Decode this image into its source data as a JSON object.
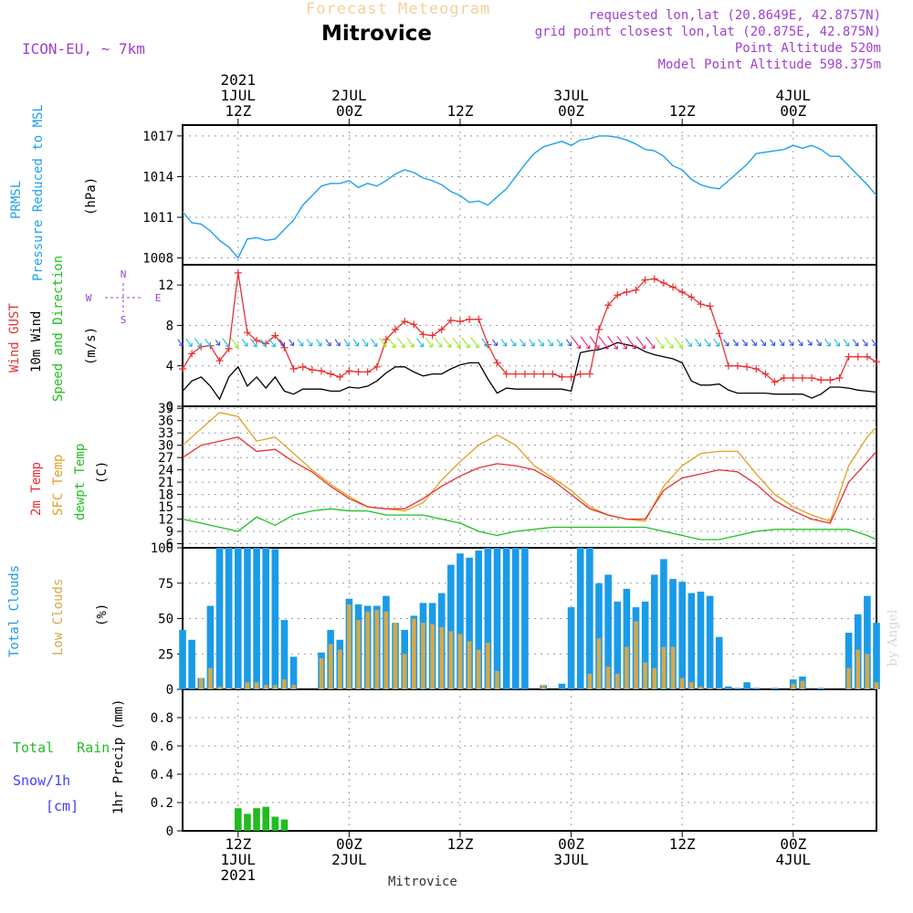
{
  "header": {
    "product": "Forecast Meteogram",
    "location": "Mitrovice",
    "model": "ICON-EU, ~ 7km",
    "requested": "requested lon,lat (20.8649E, 42.8757N)",
    "grid_point": "grid point closest lon,lat (20.875E, 42.875N)",
    "point_altitude": "Point Altitude 520m",
    "model_altitude": "Model Point Altitude 598.375m",
    "footer_location": "Mitrovice",
    "watermark": "by Angel"
  },
  "colors": {
    "pressure": "#1ea0f0",
    "gust": "#e83030",
    "wind": "#000000",
    "temp": "#e83030",
    "sfc_temp": "#e0a020",
    "dewpt": "#20c020",
    "total_clouds": "#1a9be8",
    "low_clouds": "#d4a84a",
    "rain": "#22bb22",
    "snow": "#4040ff",
    "label_purple": "#a040d0",
    "grid": "#999999"
  },
  "chart_data": {
    "time_axis": {
      "start_hour": 6,
      "end_hour": 81,
      "top_ticks": [
        {
          "hour": 12,
          "lines": [
            "2021",
            "1JUL",
            "12Z"
          ]
        },
        {
          "hour": 24,
          "lines": [
            "2JUL",
            "00Z"
          ]
        },
        {
          "hour": 36,
          "lines": [
            "12Z"
          ]
        },
        {
          "hour": 48,
          "lines": [
            "3JUL",
            "00Z"
          ]
        },
        {
          "hour": 60,
          "lines": [
            "12Z"
          ]
        },
        {
          "hour": 72,
          "lines": [
            "4JUL",
            "00Z"
          ]
        }
      ],
      "bottom_ticks": [
        {
          "hour": 12,
          "lines": [
            "12Z",
            "1JUL",
            "2021"
          ]
        },
        {
          "hour": 24,
          "lines": [
            "00Z",
            "2JUL"
          ]
        },
        {
          "hour": 36,
          "lines": [
            "12Z"
          ]
        },
        {
          "hour": 48,
          "lines": [
            "00Z",
            "3JUL"
          ]
        },
        {
          "hour": 60,
          "lines": [
            "12Z"
          ]
        },
        {
          "hour": 72,
          "lines": [
            "00Z",
            "4JUL"
          ]
        }
      ]
    },
    "pressure": {
      "type": "line",
      "labels": [
        "PRMSL",
        "Pressure Reduced to MSL"
      ],
      "unit": "(hPa)",
      "ylim": [
        1007.5,
        1017.8
      ],
      "yticks": [
        1008,
        1011,
        1014,
        1017
      ],
      "x": [
        6,
        7,
        8,
        9,
        10,
        11,
        12,
        13,
        14,
        15,
        16,
        17,
        18,
        19,
        20,
        21,
        22,
        23,
        24,
        25,
        26,
        27,
        28,
        29,
        30,
        31,
        32,
        33,
        34,
        35,
        36,
        37,
        38,
        39,
        40,
        41,
        42,
        43,
        44,
        45,
        46,
        47,
        48,
        49,
        50,
        51,
        52,
        53,
        54,
        55,
        56,
        57,
        58,
        59,
        60,
        61,
        62,
        63,
        64,
        65,
        66,
        67,
        68,
        69,
        70,
        71,
        72,
        73,
        74,
        75,
        76,
        77,
        78,
        79,
        80,
        81
      ],
      "values": [
        1011.4,
        1010.6,
        1010.5,
        1010,
        1009.3,
        1008.8,
        1008,
        1009.4,
        1009.5,
        1009.3,
        1009.4,
        1010.1,
        1010.8,
        1011.9,
        1012.6,
        1013.3,
        1013.5,
        1013.5,
        1013.7,
        1013.2,
        1013.5,
        1013.3,
        1013.7,
        1014.2,
        1014.5,
        1014.3,
        1013.9,
        1013.7,
        1013.4,
        1012.9,
        1012.6,
        1012.1,
        1012.2,
        1011.9,
        1012.5,
        1013.1,
        1014,
        1014.9,
        1015.7,
        1016.2,
        1016.4,
        1016.6,
        1016.3,
        1016.7,
        1016.8,
        1017,
        1017,
        1016.9,
        1016.7,
        1016.4,
        1016,
        1015.9,
        1015.5,
        1014.8,
        1014.5,
        1013.8,
        1013.4,
        1013.2,
        1013.1,
        1013.7,
        1014.3,
        1014.9,
        1015.7,
        1015.8,
        1015.9,
        1016,
        1016.3,
        1016.1,
        1016.3,
        1016,
        1015.5,
        1015.5,
        1014.8,
        1014.1,
        1013.4,
        1012.6
      ]
    },
    "wind": {
      "type": "line",
      "labels": [
        "Wind GUST",
        "10m Wind",
        "Speed and Direction"
      ],
      "unit": "(m/s)",
      "compass": [
        "N",
        "W",
        "E",
        "S"
      ],
      "ylim": [
        0,
        14
      ],
      "yticks": [
        0,
        4,
        8,
        12
      ],
      "x": [
        6,
        7,
        8,
        9,
        10,
        11,
        12,
        13,
        14,
        15,
        16,
        17,
        18,
        19,
        20,
        21,
        22,
        23,
        24,
        25,
        26,
        27,
        28,
        29,
        30,
        31,
        32,
        33,
        34,
        35,
        36,
        37,
        38,
        39,
        40,
        41,
        42,
        43,
        44,
        45,
        46,
        47,
        48,
        49,
        50,
        51,
        52,
        53,
        54,
        55,
        56,
        57,
        58,
        59,
        60,
        61,
        62,
        63,
        64,
        65,
        66,
        67,
        68,
        69,
        70,
        71,
        72,
        73,
        74,
        75,
        76,
        77,
        78,
        79,
        80,
        81
      ],
      "gust": [
        3.7,
        5.2,
        5.9,
        6,
        4.5,
        5.7,
        13.2,
        7.3,
        6.5,
        6.2,
        7,
        5.8,
        3.7,
        3.9,
        3.6,
        3.5,
        3.2,
        2.9,
        3.5,
        3.4,
        3.4,
        3.9,
        6.6,
        7.6,
        8.4,
        8.1,
        7.1,
        7,
        7.6,
        8.5,
        8.4,
        8.6,
        8.6,
        6.1,
        4.3,
        3.2,
        3.2,
        3.2,
        3.2,
        3.2,
        3.2,
        2.9,
        2.9,
        3.2,
        3.2,
        7.6,
        10,
        11,
        11.3,
        11.5,
        12.5,
        12.6,
        12.2,
        11.8,
        11.3,
        10.8,
        10.1,
        9.9,
        7.2,
        4,
        4,
        3.9,
        3.7,
        3.2,
        2.4,
        2.8,
        2.8,
        2.8,
        2.8,
        2.6,
        2.6,
        2.8,
        4.9,
        4.9,
        4.9,
        4.4
      ],
      "speed": [
        1.5,
        2.5,
        2.9,
        2,
        0.7,
        2.9,
        3.9,
        2,
        2.9,
        1.8,
        2.9,
        1.5,
        1.2,
        1.7,
        1.7,
        1.7,
        1.5,
        1.5,
        1.9,
        1.8,
        2,
        2.5,
        3.3,
        3.9,
        3.9,
        3.4,
        3,
        3.2,
        3.2,
        3.7,
        4.1,
        4.3,
        4.3,
        2.7,
        1.3,
        1.8,
        1.7,
        1.7,
        1.7,
        1.7,
        1.7,
        1.7,
        1.5,
        5.3,
        5.5,
        5.6,
        5.9,
        6.3,
        6.1,
        5.9,
        5.4,
        5.1,
        4.9,
        4.7,
        4.3,
        2.5,
        2.1,
        2.1,
        2.2,
        1.6,
        1.3,
        1.3,
        1.3,
        1.3,
        1.2,
        1.2,
        1.2,
        1.2,
        0.8,
        1.2,
        1.9,
        1.9,
        1.8,
        1.6,
        1.5,
        1.4
      ]
    },
    "temperature": {
      "type": "line",
      "labels": [
        "2m Temp",
        "SFC Temp",
        "dewpt Temp"
      ],
      "unit": "(C)",
      "ylim": [
        5,
        39.5
      ],
      "yticks": [
        6,
        9,
        12,
        15,
        18,
        21,
        24,
        27,
        30,
        33,
        36,
        39
      ],
      "x": [
        6,
        8,
        10,
        12,
        14,
        16,
        18,
        20,
        22,
        24,
        26,
        28,
        30,
        32,
        34,
        36,
        38,
        40,
        42,
        44,
        46,
        48,
        50,
        52,
        54,
        56,
        58,
        60,
        62,
        64,
        66,
        68,
        70,
        72,
        74,
        76,
        78,
        80,
        81
      ],
      "t2m": [
        27,
        30,
        31,
        32,
        28.5,
        29,
        26,
        23.5,
        20,
        17,
        15,
        14.5,
        14.5,
        17,
        20,
        22.5,
        24.5,
        25.5,
        25,
        24,
        21.5,
        18,
        14.5,
        13,
        12,
        12,
        19,
        22,
        23,
        24,
        23.5,
        20.5,
        16.5,
        14,
        12,
        11,
        21,
        26,
        28.5
      ],
      "sfc": [
        30,
        34,
        38,
        37,
        31,
        32,
        28,
        24,
        20.5,
        17.5,
        15,
        14.5,
        14,
        16,
        21.5,
        26,
        30,
        32.5,
        30,
        25,
        22,
        19,
        15,
        13,
        12,
        11.5,
        20,
        25,
        28,
        28.5,
        28.5,
        23,
        18,
        15,
        13,
        11.5,
        25,
        32,
        34.5
      ],
      "dewpt": [
        12,
        11,
        10,
        9,
        12.5,
        10.5,
        13,
        14,
        14.5,
        14,
        14,
        13,
        13,
        13,
        12,
        11,
        9,
        8,
        9,
        9.5,
        10,
        10,
        10,
        10,
        10,
        10,
        9,
        8,
        7,
        7,
        8,
        9,
        9.5,
        9.5,
        9.5,
        9.5,
        9.5,
        8,
        7
      ]
    },
    "clouds": {
      "type": "bar",
      "labels": [
        "Total Clouds",
        "Low Clouds"
      ],
      "unit": "(%)",
      "ylim": [
        0,
        100
      ],
      "yticks": [
        0,
        25,
        50,
        75,
        100
      ],
      "x": [
        6,
        7,
        8,
        9,
        10,
        11,
        12,
        13,
        14,
        15,
        16,
        17,
        18,
        19,
        20,
        21,
        22,
        23,
        24,
        25,
        26,
        27,
        28,
        29,
        30,
        31,
        32,
        33,
        34,
        35,
        36,
        37,
        38,
        39,
        40,
        41,
        42,
        43,
        44,
        45,
        46,
        47,
        48,
        49,
        50,
        51,
        52,
        53,
        54,
        55,
        56,
        57,
        58,
        59,
        60,
        61,
        62,
        63,
        64,
        65,
        66,
        67,
        68,
        69,
        70,
        71,
        72,
        73,
        74,
        75,
        76,
        77,
        78,
        79,
        80,
        81
      ],
      "total": [
        42,
        35,
        8,
        59,
        100,
        100,
        100,
        100,
        100,
        100,
        99,
        49,
        23,
        0,
        0,
        26,
        42,
        35,
        64,
        60,
        59,
        59,
        66,
        47,
        42,
        52,
        61,
        61,
        68,
        88,
        96,
        93,
        98,
        100,
        100,
        100,
        100,
        100,
        0,
        3,
        0,
        4,
        58,
        100,
        100,
        75,
        81,
        62,
        71,
        58,
        62,
        81,
        92,
        78,
        76,
        68,
        69,
        66,
        37,
        2,
        1,
        5,
        1,
        0,
        1,
        0,
        7,
        9,
        0,
        1,
        0,
        0,
        40,
        53,
        66,
        47
      ],
      "low": [
        0,
        0,
        8,
        15,
        2,
        1,
        1,
        5,
        5,
        3,
        3,
        7,
        3,
        0,
        0,
        22,
        32,
        28,
        60,
        49,
        55,
        56,
        55,
        47,
        25,
        50,
        47,
        46,
        44,
        41,
        39,
        34,
        28,
        33,
        13,
        0,
        0,
        0,
        0,
        3,
        0,
        0,
        0,
        0,
        11,
        36,
        16,
        11,
        30,
        48,
        19,
        15,
        30,
        30,
        8,
        5,
        2,
        1,
        1,
        0,
        0,
        0,
        0,
        0,
        0,
        0,
        4,
        6,
        0,
        0,
        0,
        0,
        15,
        28,
        25,
        5
      ]
    },
    "precip": {
      "type": "bar",
      "labels": [
        "Total Rain",
        "Snow/1h",
        "[cm]"
      ],
      "ylabel": "1hr Precip (mm)",
      "ylim": [
        0,
        1.0
      ],
      "yticks": [
        0,
        0.2,
        0.4,
        0.6,
        0.8
      ],
      "x": [
        12,
        13,
        14,
        15,
        16,
        17
      ],
      "values": [
        0.16,
        0.12,
        0.16,
        0.17,
        0.1,
        0.08
      ]
    }
  }
}
